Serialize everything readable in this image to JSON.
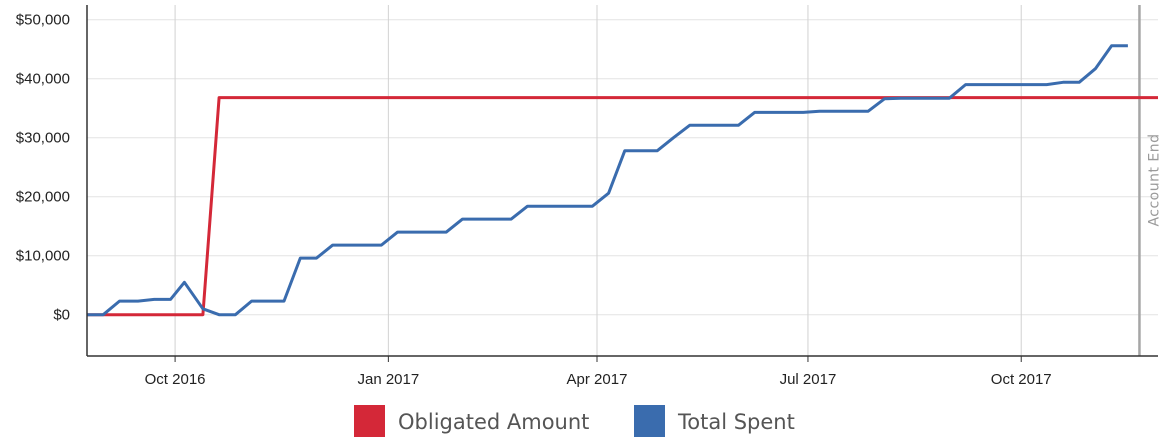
{
  "chart_data": {
    "type": "line",
    "title": "",
    "xlabel": "",
    "ylabel": "",
    "x_ticks": [
      {
        "date": "2016-10-01",
        "label": "Oct 2016"
      },
      {
        "date": "2017-01-01",
        "label": "Jan 2017"
      },
      {
        "date": "2017-04-01",
        "label": "Apr 2017"
      },
      {
        "date": "2017-07-01",
        "label": "Jul 2017"
      },
      {
        "date": "2017-10-01",
        "label": "Oct 2017"
      }
    ],
    "y_ticks": [
      {
        "value": 0,
        "label": "$0"
      },
      {
        "value": 10000,
        "label": "$10,000"
      },
      {
        "value": 20000,
        "label": "$20,000"
      },
      {
        "value": 30000,
        "label": "$30,000"
      },
      {
        "value": 40000,
        "label": "$40,000"
      },
      {
        "value": 50000,
        "label": "$50,000"
      }
    ],
    "xlim": [
      "2016-08-24",
      "2017-11-29"
    ],
    "ylim": [
      -7000,
      52500
    ],
    "grid": true,
    "legend_position": "bottom",
    "marker": {
      "date": "2017-11-21",
      "label": "Account End",
      "color": "#a6a6a6"
    },
    "series": [
      {
        "name": "Obligated Amount",
        "color": "#d42838",
        "points": [
          [
            "2016-08-24",
            0
          ],
          [
            "2016-10-13",
            0
          ],
          [
            "2016-10-20",
            36800
          ],
          [
            "2017-11-29",
            36800
          ]
        ]
      },
      {
        "name": "Total Spent",
        "color": "#3a6cae",
        "points": [
          [
            "2016-08-24",
            0
          ],
          [
            "2016-08-31",
            0
          ],
          [
            "2016-09-07",
            2300
          ],
          [
            "2016-09-15",
            2300
          ],
          [
            "2016-09-22",
            2600
          ],
          [
            "2016-09-29",
            2600
          ],
          [
            "2016-10-05",
            5500
          ],
          [
            "2016-10-13",
            1000
          ],
          [
            "2016-10-20",
            0
          ],
          [
            "2016-10-27",
            0
          ],
          [
            "2016-11-03",
            2300
          ],
          [
            "2016-11-17",
            2300
          ],
          [
            "2016-11-24",
            9600
          ],
          [
            "2016-12-01",
            9600
          ],
          [
            "2016-12-08",
            11800
          ],
          [
            "2016-12-29",
            11800
          ],
          [
            "2017-01-05",
            14000
          ],
          [
            "2017-01-26",
            14000
          ],
          [
            "2017-02-02",
            16200
          ],
          [
            "2017-02-23",
            16200
          ],
          [
            "2017-03-02",
            18400
          ],
          [
            "2017-03-30",
            18400
          ],
          [
            "2017-04-06",
            20600
          ],
          [
            "2017-04-13",
            27800
          ],
          [
            "2017-04-27",
            27800
          ],
          [
            "2017-05-04",
            30000
          ],
          [
            "2017-05-11",
            32100
          ],
          [
            "2017-06-01",
            32100
          ],
          [
            "2017-06-08",
            34300
          ],
          [
            "2017-06-29",
            34300
          ],
          [
            "2017-07-06",
            34500
          ],
          [
            "2017-07-27",
            34500
          ],
          [
            "2017-08-03",
            36600
          ],
          [
            "2017-08-10",
            36700
          ],
          [
            "2017-08-31",
            36700
          ],
          [
            "2017-09-07",
            39000
          ],
          [
            "2017-09-28",
            39000
          ],
          [
            "2017-10-05",
            39000
          ],
          [
            "2017-10-12",
            39000
          ],
          [
            "2017-10-19",
            39400
          ],
          [
            "2017-10-26",
            39400
          ],
          [
            "2017-11-02",
            41700
          ],
          [
            "2017-11-09",
            45600
          ],
          [
            "2017-11-16",
            45600
          ]
        ]
      }
    ]
  }
}
